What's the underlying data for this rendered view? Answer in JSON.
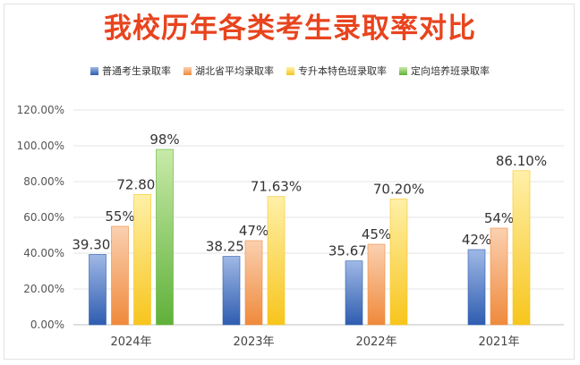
{
  "chart_data": {
    "type": "bar",
    "title": "我校历年各类考生录取率对比",
    "categories": [
      "2024年",
      "2023年",
      "2022年",
      "2021年"
    ],
    "ylim": [
      0,
      120
    ],
    "yticks": [
      "0.00%",
      "20.00%",
      "40.00%",
      "60.00%",
      "80.00%",
      "100.00%",
      "120.00%"
    ],
    "ytick_values": [
      0,
      20,
      40,
      60,
      80,
      100,
      120
    ],
    "grid": true,
    "legend_position": "top",
    "series": [
      {
        "name": "普通考生录取率",
        "values": [
          39.3,
          38.25,
          35.67,
          42
        ],
        "labels": [
          "39.30%",
          "38.25%",
          "35.67%",
          "42%"
        ],
        "color_top": "#9fb8e6",
        "color_bottom": "#2f5db0"
      },
      {
        "name": "湖北省平均录取率",
        "values": [
          55,
          47,
          45,
          54
        ],
        "labels": [
          "55%",
          "47%",
          "45%",
          "54%"
        ],
        "color_top": "#fbd0b0",
        "color_bottom": "#ef8a3c"
      },
      {
        "name": "专升本特色班录取率",
        "values": [
          72.8,
          71.63,
          70.2,
          86.1
        ],
        "labels": [
          "72.80%",
          "71.63%",
          "70.20%",
          "86.10%"
        ],
        "color_top": "#fff0a8",
        "color_bottom": "#f7c51d"
      },
      {
        "name": "定向培养班录取率",
        "values": [
          98,
          null,
          null,
          null
        ],
        "labels": [
          "98%",
          "",
          "",
          ""
        ],
        "color_top": "#c8eaa8",
        "color_bottom": "#5fb13a"
      }
    ]
  }
}
